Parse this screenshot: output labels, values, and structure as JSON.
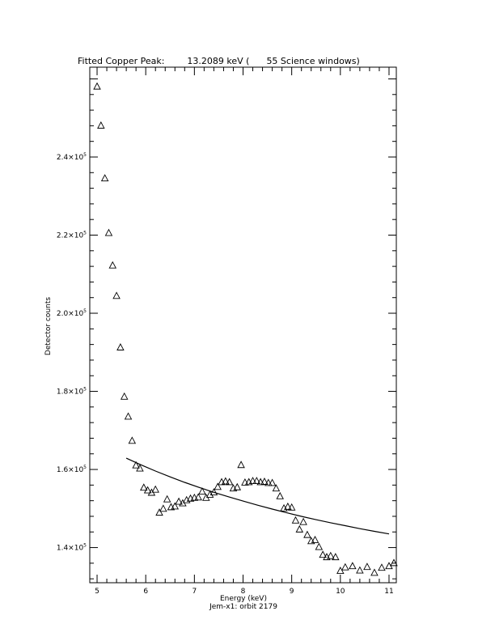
{
  "chart_data": {
    "type": "scatter",
    "title": "Fitted Copper Peak:        13.2089 keV (      55 Science windows)",
    "xlabel": "Energy (keV)",
    "ylabel": "Detector counts",
    "subtitle": "Jem-x1: orbit 2179",
    "xlim": [
      4.85,
      11.15
    ],
    "ylim": [
      131000,
      263000
    ],
    "x_ticks": [
      5,
      6,
      7,
      8,
      9,
      10,
      11
    ],
    "x_tick_labels": [
      "5",
      "6",
      "7",
      "8",
      "9",
      "10",
      "11"
    ],
    "y_ticks": [
      140000,
      160000,
      180000,
      200000,
      220000,
      240000
    ],
    "y_tick_labels": [
      {
        "mant": "1.4×10",
        "exp": "5"
      },
      {
        "mant": "1.6×10",
        "exp": "5"
      },
      {
        "mant": "1.8×10",
        "exp": "5"
      },
      {
        "mant": "2.0×10",
        "exp": "5"
      },
      {
        "mant": "2.2×10",
        "exp": "5"
      },
      {
        "mant": "2.4×10",
        "exp": "5"
      }
    ],
    "series": [
      {
        "marker": "triangle",
        "x": [
          5.0,
          5.08,
          5.16,
          5.24,
          5.32,
          5.4,
          5.48,
          5.56,
          5.64,
          5.72,
          5.8,
          5.88,
          5.96,
          6.04,
          6.12,
          6.2,
          6.28,
          6.36,
          6.44,
          6.52,
          6.6,
          6.68,
          6.76,
          6.84,
          6.92,
          7.0,
          7.08,
          7.16,
          7.24,
          7.32,
          7.4,
          7.48,
          7.56,
          7.64,
          7.72,
          7.8,
          7.88,
          7.96,
          8.04,
          8.12,
          8.2,
          8.28,
          8.36,
          8.44,
          8.52,
          8.6,
          8.68,
          8.76,
          8.84,
          8.92,
          9.0,
          9.08,
          9.16,
          9.24,
          9.32,
          9.4,
          9.48,
          9.56,
          9.64,
          9.72,
          9.8,
          9.9,
          10.0,
          10.1,
          10.25,
          10.4,
          10.55,
          10.7,
          10.85,
          11.0,
          11.1
        ],
        "y": [
          258000,
          248000,
          234500,
          220500,
          212200,
          204400,
          191200,
          178600,
          173500,
          167300,
          161000,
          160200,
          155300,
          154600,
          154000,
          154800,
          148900,
          149900,
          152300,
          150300,
          150500,
          151700,
          151300,
          152100,
          152500,
          152700,
          152800,
          154300,
          152700,
          153500,
          154100,
          155500,
          156700,
          156900,
          156700,
          155100,
          155400,
          161100,
          156600,
          156700,
          157000,
          157000,
          156700,
          156800,
          156500,
          156500,
          155100,
          153100,
          150000,
          150400,
          150200,
          146900,
          144600,
          146500,
          143200,
          141600,
          141900,
          140100,
          138100,
          137500,
          137800,
          137500,
          134000,
          134900,
          135200,
          134100,
          135000,
          133500,
          134800,
          135200,
          136000
        ]
      },
      {
        "marker": "line",
        "x": [
          5.6,
          5.9,
          6.2,
          6.5,
          6.8,
          7.1,
          7.4,
          7.7,
          8.0,
          8.3,
          8.6,
          8.9,
          9.2,
          9.5,
          9.8,
          10.1,
          10.4,
          10.7,
          11.0
        ],
        "y": [
          162900,
          161200,
          159600,
          158100,
          156700,
          155400,
          154150,
          153000,
          151900,
          150850,
          149850,
          148900,
          148000,
          147150,
          146350,
          145600,
          144850,
          144150,
          143500
        ]
      }
    ]
  }
}
